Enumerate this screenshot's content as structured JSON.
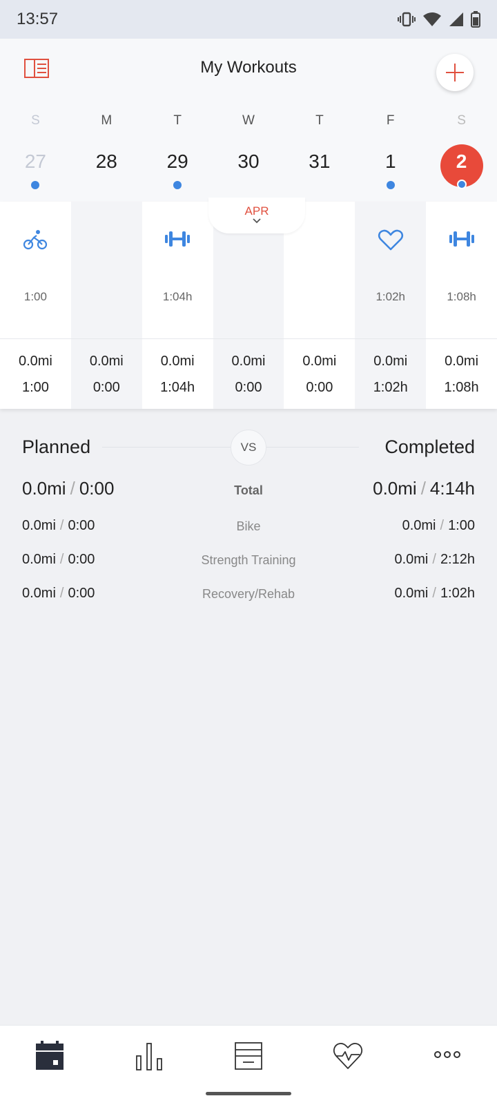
{
  "status_bar": {
    "time": "13:57"
  },
  "header": {
    "title": "My Workouts"
  },
  "week": [
    {
      "letter": "S",
      "number": "27",
      "faded": true,
      "dot": true
    },
    {
      "letter": "M",
      "number": "28",
      "faded": false,
      "dot": false
    },
    {
      "letter": "T",
      "number": "29",
      "faded": false,
      "dot": true
    },
    {
      "letter": "W",
      "number": "30",
      "faded": false,
      "dot": false
    },
    {
      "letter": "T",
      "number": "31",
      "faded": false,
      "dot": false
    },
    {
      "letter": "F",
      "number": "1",
      "faded": false,
      "dot": true
    },
    {
      "letter": "S",
      "number": "2",
      "selected": true,
      "dot": true
    }
  ],
  "month_tab": {
    "label": "APR"
  },
  "columns": [
    {
      "icon": "bike-icon",
      "duration": "1:00",
      "distance": "0.0mi",
      "time": "1:00"
    },
    {
      "icon": "",
      "duration": "",
      "distance": "0.0mi",
      "time": "0:00"
    },
    {
      "icon": "dumbbell-icon",
      "duration": "1:04h",
      "distance": "0.0mi",
      "time": "1:04h"
    },
    {
      "icon": "",
      "duration": "",
      "distance": "0.0mi",
      "time": "0:00"
    },
    {
      "icon": "",
      "duration": "",
      "distance": "0.0mi",
      "time": "0:00"
    },
    {
      "icon": "heart-icon",
      "duration": "1:02h",
      "distance": "0.0mi",
      "time": "1:02h"
    },
    {
      "icon": "dumbbell-icon",
      "duration": "1:08h",
      "distance": "0.0mi",
      "time": "1:08h"
    }
  ],
  "comparison": {
    "planned_label": "Planned",
    "vs_label": "VS",
    "completed_label": "Completed",
    "separator": "/",
    "total": {
      "label": "Total",
      "planned_distance": "0.0mi",
      "planned_time": "0:00",
      "completed_distance": "0.0mi",
      "completed_time": "4:14h"
    },
    "rows": [
      {
        "label": "Bike",
        "planned_distance": "0.0mi",
        "planned_time": "0:00",
        "completed_distance": "0.0mi",
        "completed_time": "1:00"
      },
      {
        "label": "Strength Training",
        "planned_distance": "0.0mi",
        "planned_time": "0:00",
        "completed_distance": "0.0mi",
        "completed_time": "2:12h"
      },
      {
        "label": "Recovery/Rehab",
        "planned_distance": "0.0mi",
        "planned_time": "0:00",
        "completed_distance": "0.0mi",
        "completed_time": "1:02h"
      }
    ]
  },
  "bottom_nav": [
    {
      "icon": "calendar-icon",
      "active": true
    },
    {
      "icon": "bar-chart-icon",
      "active": false
    },
    {
      "icon": "list-icon",
      "active": false
    },
    {
      "icon": "heart-pulse-icon",
      "active": false
    },
    {
      "icon": "more-icon",
      "active": false
    }
  ],
  "colors": {
    "accent_red": "#e84a3a",
    "accent_blue": "#3e86e0"
  }
}
